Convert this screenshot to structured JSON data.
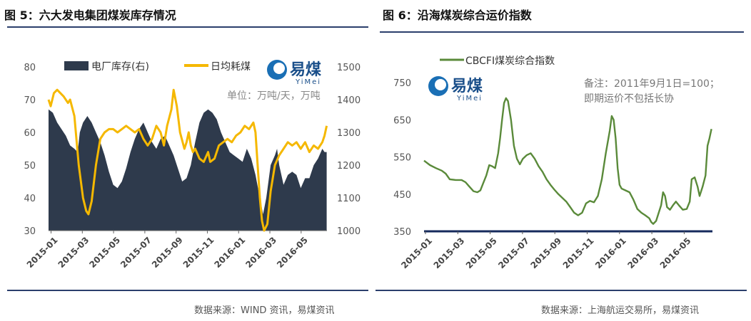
{
  "figures": [
    {
      "title": "图 5：六大发电集团煤炭库存情况",
      "source": "数据来源：WIND 资讯，易煤资讯",
      "logo": {
        "text": "易煤",
        "sub": "YiMei"
      },
      "unit_note": "单位：万吨/天，万吨"
    },
    {
      "title": "图 6：沿海煤炭综合运价指数",
      "source": "数据来源：上海航运交易所，易煤资讯",
      "logo": {
        "text": "易煤",
        "sub": "YiMei"
      },
      "note_line1": "备注：2011年9月1日=100；",
      "note_line2": "即期运价不包括长协"
    }
  ],
  "colors": {
    "rule": "#2b3f6c",
    "stock": "#2e3a4c",
    "daily": "#f5b800",
    "cbcfi": "#5a8a3a",
    "axis": "#152a5c"
  },
  "chart_data": [
    {
      "type": "area",
      "x_ticks": [
        "2015-01",
        "2015-03",
        "2015-05",
        "2015-07",
        "2015-09",
        "2015-11",
        "2016-01",
        "2016-03",
        "2016-05"
      ],
      "ylabel_left": "",
      "ylabel_right": "",
      "ylim_left": [
        30,
        80
      ],
      "yticks_left": [
        30,
        40,
        50,
        60,
        70,
        80
      ],
      "ylim_right": [
        1000,
        1500
      ],
      "yticks_right": [
        1000,
        1100,
        1200,
        1300,
        1400,
        1500
      ],
      "legend_placement": "top",
      "series": [
        {
          "name": "日均耗煤",
          "type": "line",
          "axis": "left",
          "values": [
            [
              0,
              70
            ],
            [
              0.1,
              68
            ],
            [
              0.25,
              72
            ],
            [
              0.4,
              73
            ],
            [
              0.7,
              71
            ],
            [
              0.9,
              69
            ],
            [
              1.0,
              70
            ],
            [
              1.2,
              65
            ],
            [
              1.4,
              50
            ],
            [
              1.6,
              40
            ],
            [
              1.75,
              36
            ],
            [
              1.85,
              35
            ],
            [
              2.0,
              39
            ],
            [
              2.2,
              50
            ],
            [
              2.4,
              58
            ],
            [
              2.6,
              60
            ],
            [
              2.8,
              61
            ],
            [
              3.0,
              61
            ],
            [
              3.2,
              60
            ],
            [
              3.4,
              61
            ],
            [
              3.6,
              62
            ],
            [
              3.8,
              61
            ],
            [
              4.0,
              60
            ],
            [
              4.2,
              61
            ],
            [
              4.4,
              58
            ],
            [
              4.6,
              56
            ],
            [
              4.8,
              58
            ],
            [
              5.0,
              62
            ],
            [
              5.2,
              60
            ],
            [
              5.35,
              56
            ],
            [
              5.5,
              62
            ],
            [
              5.7,
              67
            ],
            [
              5.8,
              73
            ],
            [
              5.95,
              68
            ],
            [
              6.1,
              60
            ],
            [
              6.3,
              55
            ],
            [
              6.4,
              57
            ],
            [
              6.5,
              60
            ],
            [
              6.6,
              56
            ],
            [
              6.7,
              54
            ],
            [
              6.8,
              55
            ],
            [
              7.0,
              52
            ],
            [
              7.2,
              51
            ],
            [
              7.4,
              54
            ],
            [
              7.5,
              51
            ],
            [
              7.7,
              52
            ],
            [
              7.9,
              56
            ],
            [
              8.1,
              57
            ],
            [
              8.3,
              58
            ],
            [
              8.5,
              57
            ],
            [
              8.7,
              59
            ],
            [
              8.9,
              60
            ],
            [
              9.1,
              62
            ],
            [
              9.3,
              61
            ],
            [
              9.5,
              63
            ],
            [
              9.6,
              60
            ],
            [
              9.7,
              50
            ],
            [
              9.8,
              40
            ],
            [
              9.9,
              33
            ],
            [
              10.0,
              30
            ],
            [
              10.15,
              32
            ],
            [
              10.3,
              42
            ],
            [
              10.5,
              50
            ],
            [
              10.7,
              53
            ],
            [
              10.9,
              55
            ],
            [
              11.1,
              57
            ],
            [
              11.3,
              56
            ],
            [
              11.5,
              57
            ],
            [
              11.7,
              55
            ],
            [
              11.9,
              57
            ],
            [
              12.1,
              54
            ],
            [
              12.3,
              56
            ],
            [
              12.5,
              55
            ],
            [
              12.7,
              57
            ],
            [
              12.8,
              59
            ],
            [
              12.9,
              62
            ]
          ]
        },
        {
          "name": "电厂库存(右)",
          "type": "area",
          "axis": "right",
          "values": [
            [
              0,
              1370
            ],
            [
              0.2,
              1360
            ],
            [
              0.4,
              1330
            ],
            [
              0.6,
              1310
            ],
            [
              0.8,
              1290
            ],
            [
              1.0,
              1260
            ],
            [
              1.2,
              1250
            ],
            [
              1.35,
              1240
            ],
            [
              1.45,
              1300
            ],
            [
              1.6,
              1330
            ],
            [
              1.8,
              1350
            ],
            [
              2.0,
              1330
            ],
            [
              2.2,
              1300
            ],
            [
              2.4,
              1270
            ],
            [
              2.6,
              1230
            ],
            [
              2.8,
              1180
            ],
            [
              3.0,
              1140
            ],
            [
              3.2,
              1130
            ],
            [
              3.4,
              1150
            ],
            [
              3.6,
              1190
            ],
            [
              3.8,
              1240
            ],
            [
              4.0,
              1280
            ],
            [
              4.2,
              1310
            ],
            [
              4.4,
              1330
            ],
            [
              4.6,
              1300
            ],
            [
              4.8,
              1270
            ],
            [
              5.0,
              1250
            ],
            [
              5.2,
              1280
            ],
            [
              5.4,
              1290
            ],
            [
              5.6,
              1260
            ],
            [
              5.8,
              1230
            ],
            [
              6.0,
              1190
            ],
            [
              6.2,
              1150
            ],
            [
              6.4,
              1160
            ],
            [
              6.6,
              1200
            ],
            [
              6.8,
              1270
            ],
            [
              7.0,
              1330
            ],
            [
              7.2,
              1360
            ],
            [
              7.4,
              1370
            ],
            [
              7.6,
              1360
            ],
            [
              7.8,
              1340
            ],
            [
              8.0,
              1300
            ],
            [
              8.2,
              1270
            ],
            [
              8.4,
              1240
            ],
            [
              8.6,
              1230
            ],
            [
              8.8,
              1220
            ],
            [
              9.0,
              1210
            ],
            [
              9.2,
              1250
            ],
            [
              9.4,
              1220
            ],
            [
              9.6,
              1170
            ],
            [
              9.8,
              1100
            ],
            [
              9.95,
              1050
            ],
            [
              10.1,
              1100
            ],
            [
              10.3,
              1200
            ],
            [
              10.5,
              1230
            ],
            [
              10.6,
              1250
            ],
            [
              10.7,
              1200
            ],
            [
              10.9,
              1140
            ],
            [
              11.1,
              1170
            ],
            [
              11.3,
              1180
            ],
            [
              11.5,
              1170
            ],
            [
              11.7,
              1130
            ],
            [
              11.9,
              1160
            ],
            [
              12.1,
              1160
            ],
            [
              12.3,
              1200
            ],
            [
              12.5,
              1220
            ],
            [
              12.7,
              1250
            ],
            [
              12.8,
              1240
            ],
            [
              12.9,
              1240
            ]
          ]
        }
      ]
    },
    {
      "type": "line",
      "x_ticks": [
        "2015-01",
        "2015-03",
        "2015-05",
        "2015-07",
        "2015-09",
        "2015-11",
        "2016-01",
        "2016-03",
        "2016-05"
      ],
      "ylim": [
        350,
        750
      ],
      "yticks": [
        350,
        450,
        550,
        650,
        750
      ],
      "legend_placement": "top-left",
      "series": [
        {
          "name": "CBCFI煤炭综合指数",
          "values": [
            [
              0,
              540
            ],
            [
              0.3,
              528
            ],
            [
              0.6,
              520
            ],
            [
              0.9,
              513
            ],
            [
              1.1,
              505
            ],
            [
              1.3,
              490
            ],
            [
              1.6,
              488
            ],
            [
              1.9,
              488
            ],
            [
              2.1,
              482
            ],
            [
              2.3,
              470
            ],
            [
              2.5,
              458
            ],
            [
              2.7,
              455
            ],
            [
              2.85,
              460
            ],
            [
              3.0,
              480
            ],
            [
              3.15,
              500
            ],
            [
              3.3,
              528
            ],
            [
              3.45,
              525
            ],
            [
              3.6,
              520
            ],
            [
              3.75,
              560
            ],
            [
              3.85,
              600
            ],
            [
              3.95,
              650
            ],
            [
              4.05,
              695
            ],
            [
              4.15,
              708
            ],
            [
              4.25,
              700
            ],
            [
              4.4,
              650
            ],
            [
              4.55,
              580
            ],
            [
              4.7,
              545
            ],
            [
              4.85,
              530
            ],
            [
              5.0,
              545
            ],
            [
              5.2,
              555
            ],
            [
              5.4,
              560
            ],
            [
              5.6,
              545
            ],
            [
              5.8,
              525
            ],
            [
              6.0,
              510
            ],
            [
              6.2,
              490
            ],
            [
              6.4,
              475
            ],
            [
              6.6,
              462
            ],
            [
              6.8,
              450
            ],
            [
              7.0,
              440
            ],
            [
              7.2,
              430
            ],
            [
              7.4,
              415
            ],
            [
              7.6,
              400
            ],
            [
              7.8,
              393
            ],
            [
              8.0,
              400
            ],
            [
              8.2,
              425
            ],
            [
              8.4,
              432
            ],
            [
              8.6,
              428
            ],
            [
              8.8,
              445
            ],
            [
              9.0,
              490
            ],
            [
              9.2,
              560
            ],
            [
              9.4,
              620
            ],
            [
              9.5,
              660
            ],
            [
              9.6,
              650
            ],
            [
              9.7,
              600
            ],
            [
              9.8,
              520
            ],
            [
              9.9,
              475
            ],
            [
              10.0,
              465
            ],
            [
              10.2,
              460
            ],
            [
              10.4,
              455
            ],
            [
              10.6,
              435
            ],
            [
              10.8,
              410
            ],
            [
              11.0,
              400
            ],
            [
              11.2,
              393
            ],
            [
              11.4,
              385
            ],
            [
              11.5,
              375
            ],
            [
              11.6,
              370
            ],
            [
              11.75,
              378
            ],
            [
              11.85,
              395
            ],
            [
              12.0,
              420
            ],
            [
              12.1,
              455
            ],
            [
              12.2,
              445
            ],
            [
              12.3,
              415
            ],
            [
              12.45,
              408
            ],
            [
              12.6,
              420
            ],
            [
              12.75,
              430
            ],
            [
              12.9,
              420
            ],
            [
              13.1,
              408
            ],
            [
              13.3,
              410
            ],
            [
              13.45,
              430
            ],
            [
              13.55,
              490
            ],
            [
              13.7,
              495
            ],
            [
              13.85,
              470
            ],
            [
              13.95,
              445
            ],
            [
              14.1,
              470
            ],
            [
              14.25,
              500
            ],
            [
              14.35,
              580
            ],
            [
              14.45,
              600
            ],
            [
              14.55,
              625
            ]
          ]
        }
      ]
    }
  ]
}
